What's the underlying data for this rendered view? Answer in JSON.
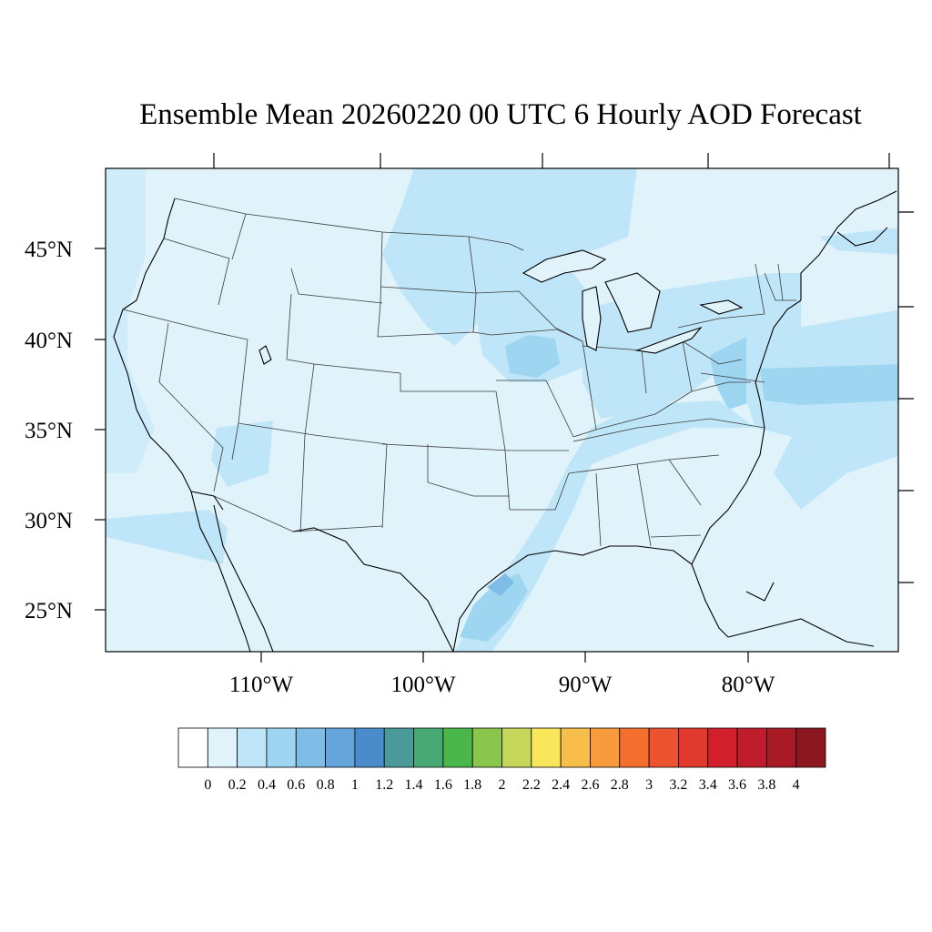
{
  "title": "Ensemble Mean 20260220 00 UTC 6 Hourly AOD Forecast",
  "map": {
    "projection": "lambert-conformal",
    "region": "CONUS",
    "field": "AOD",
    "background_color": "#e0f3fb",
    "lat_ticks": [
      {
        "label": "45°N",
        "value": 45
      },
      {
        "label": "40°N",
        "value": 40
      },
      {
        "label": "35°N",
        "value": 35
      },
      {
        "label": "30°N",
        "value": 30
      },
      {
        "label": "25°N",
        "value": 25
      }
    ],
    "lon_ticks": [
      {
        "label": "110°W",
        "value": -110
      },
      {
        "label": "100°W",
        "value": -100
      },
      {
        "label": "90°W",
        "value": -90
      },
      {
        "label": "80°W",
        "value": -80
      }
    ],
    "features": [
      "coastlines",
      "state-boundaries",
      "country-borders",
      "great-lakes"
    ]
  },
  "colorbar": {
    "labels": [
      "0",
      "0.2",
      "0.4",
      "0.6",
      "0.8",
      "1",
      "1.2",
      "1.4",
      "1.6",
      "1.8",
      "2",
      "2.2",
      "2.4",
      "2.6",
      "2.8",
      "3",
      "3.2",
      "3.4",
      "3.6",
      "3.8",
      "4"
    ],
    "colors": [
      "#ffffff",
      "#e0f3fb",
      "#bfe6f8",
      "#9ed6f2",
      "#7fbde6",
      "#65a5dc",
      "#4a8ccb",
      "#4a9a9a",
      "#47a874",
      "#49b749",
      "#8ac54e",
      "#c4d75a",
      "#f8e75a",
      "#f7be4b",
      "#f89b3c",
      "#f46f2d",
      "#ec5330",
      "#e1392d",
      "#d21f2b",
      "#bf1d2b",
      "#a81b25",
      "#8d1720"
    ]
  }
}
